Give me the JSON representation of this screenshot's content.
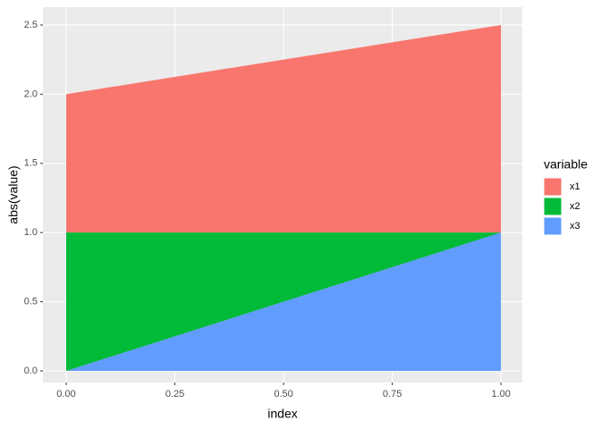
{
  "chart_data": {
    "type": "area",
    "stacked": true,
    "x_label": "index",
    "y_label": "abs(value)",
    "legend_title": "variable",
    "x": [
      0,
      1
    ],
    "series": [
      {
        "name": "x1",
        "color": "#f8766d",
        "values": [
          1,
          1.5
        ]
      },
      {
        "name": "x2",
        "color": "#00ba38",
        "values": [
          1,
          0
        ]
      },
      {
        "name": "x3",
        "color": "#619cff",
        "values": [
          0,
          1
        ]
      }
    ],
    "xlim": [
      -0.0535,
      1.049
    ],
    "ylim": [
      -0.084,
      2.629
    ],
    "xticks": [
      {
        "value": 0,
        "label": "0.00"
      },
      {
        "value": 0.25,
        "label": "0.25"
      },
      {
        "value": 0.5,
        "label": "0.50"
      },
      {
        "value": 0.75,
        "label": "0.75"
      },
      {
        "value": 1,
        "label": "1.00"
      }
    ],
    "yticks": [
      {
        "value": 0,
        "label": "0.0"
      },
      {
        "value": 0.5,
        "label": "0.5"
      },
      {
        "value": 1,
        "label": "1.0"
      },
      {
        "value": 1.5,
        "label": "1.5"
      },
      {
        "value": 2,
        "label": "2.0"
      },
      {
        "value": 2.5,
        "label": "2.5"
      }
    ],
    "grid": true,
    "legend_position": "right"
  }
}
